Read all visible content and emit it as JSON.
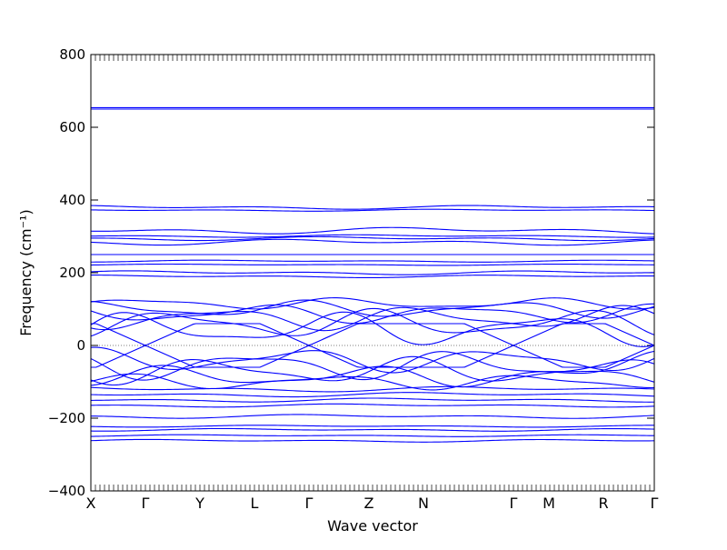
{
  "chart_data": {
    "type": "line",
    "xlabel": "Wave vector",
    "ylabel": "Frequency (cm⁻¹)",
    "ylim": [
      -400,
      800
    ],
    "yticks": [
      -400,
      -200,
      0,
      200,
      400,
      600,
      800
    ],
    "ytick_labels": [
      "−400",
      "−200",
      "0",
      "200",
      "400",
      "600",
      "800"
    ],
    "xlim": [
      0,
      10.333
    ],
    "xticks": [
      {
        "pos": 0,
        "label": "X"
      },
      {
        "pos": 1,
        "label": "Γ"
      },
      {
        "pos": 2,
        "label": "Y"
      },
      {
        "pos": 3,
        "label": "L"
      },
      {
        "pos": 4,
        "label": "Γ"
      },
      {
        "pos": 5.1,
        "label": "Z"
      },
      {
        "pos": 6.1,
        "label": "N"
      },
      {
        "pos": 7.75,
        "label": "Γ"
      },
      {
        "pos": 8.4,
        "label": "M"
      },
      {
        "pos": 9.4,
        "label": "R"
      },
      {
        "pos": 10.333,
        "label": "Γ"
      }
    ],
    "zero_reference_line": true,
    "line_color": "#0000ff",
    "bands_flat": [
      {
        "y": 654
      },
      {
        "y": 650
      },
      {
        "y": 380,
        "amp": 6
      },
      {
        "y": 372,
        "amp": 3
      },
      {
        "y": 316,
        "amp": 10
      },
      {
        "y": 301,
        "amp": 4
      },
      {
        "y": 294,
        "amp": 6
      },
      {
        "y": 284,
        "amp": 9
      },
      {
        "y": 250
      },
      {
        "y": 232,
        "amp": 3
      },
      {
        "y": 222,
        "amp": 2
      },
      {
        "y": 200,
        "amp": 6
      },
      {
        "y": 190,
        "amp": 4
      },
      {
        "y": -120,
        "amp": 8
      },
      {
        "y": -135,
        "amp": 7
      },
      {
        "y": -150,
        "amp": 6
      },
      {
        "y": -165,
        "amp": 5
      },
      {
        "y": -195,
        "amp": 6
      },
      {
        "y": -222,
        "amp": 3
      },
      {
        "y": -232,
        "amp": 4
      },
      {
        "y": -248,
        "amp": 3
      },
      {
        "y": -262,
        "amp": 4
      }
    ],
    "bands_tangled": [
      {
        "y": 115,
        "amp": 12
      },
      {
        "y": 100,
        "amp": 18
      },
      {
        "y": 88,
        "amp": 20
      },
      {
        "y": 75,
        "amp": 25
      },
      {
        "y": 60,
        "amp": 30
      },
      {
        "y": 45,
        "amp": 35
      },
      {
        "y": -40,
        "amp": 25
      },
      {
        "y": -55,
        "amp": 30
      },
      {
        "y": -70,
        "amp": 28
      },
      {
        "y": -85,
        "amp": 22
      },
      {
        "y": -100,
        "amp": 16
      }
    ],
    "acoustic_nodes": [
      1,
      4,
      7.75,
      10.333
    ]
  }
}
